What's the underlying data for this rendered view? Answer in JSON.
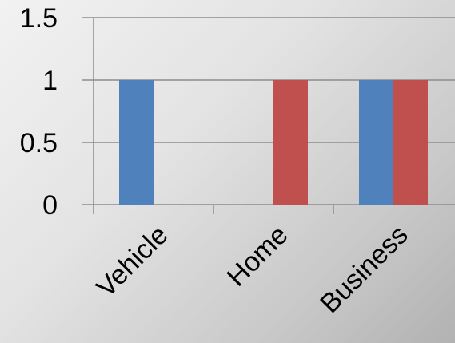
{
  "chart_data": {
    "type": "bar",
    "categories": [
      "Vehicle",
      "Home",
      "Business"
    ],
    "series": [
      {
        "color": "#4f81bd",
        "values": [
          1,
          0,
          1
        ]
      },
      {
        "color": "#c0504d",
        "values": [
          0,
          1,
          1
        ]
      }
    ],
    "ylim": [
      0,
      1.5
    ],
    "yticks": [
      "0",
      "0.5",
      "1",
      "1.5"
    ],
    "grid": true,
    "legend": "none"
  }
}
